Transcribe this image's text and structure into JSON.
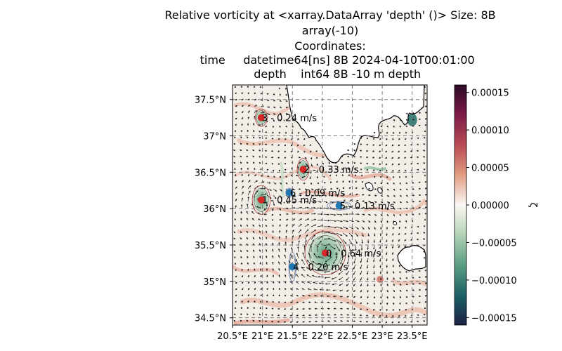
{
  "chart_data": {
    "type": "map",
    "title_lines": [
      "Relative vorticity at <xarray.DataArray 'depth' ()> Size: 8B",
      "array(-10)",
      "Coordinates:",
      "    time     datetime64[ns] 8B 2024-04-10T00:01:00",
      "    depth    int64 8B -10 m depth"
    ],
    "x_ticks": [
      {
        "value": 20.5,
        "label": "20.5°E"
      },
      {
        "value": 21.0,
        "label": "21°E"
      },
      {
        "value": 21.5,
        "label": "21.5°E"
      },
      {
        "value": 22.0,
        "label": "22°E"
      },
      {
        "value": 22.5,
        "label": "22.5°E"
      },
      {
        "value": 23.0,
        "label": "23°E"
      },
      {
        "value": 23.5,
        "label": "23.5°E"
      }
    ],
    "y_ticks": [
      {
        "value": 37.5,
        "label": "37.5°N"
      },
      {
        "value": 37.0,
        "label": "37°N"
      },
      {
        "value": 36.5,
        "label": "36.5°N"
      },
      {
        "value": 36.0,
        "label": "36°N"
      },
      {
        "value": 35.5,
        "label": "35.5°N"
      },
      {
        "value": 35.0,
        "label": "35°N"
      },
      {
        "value": 34.5,
        "label": "34.5°N"
      }
    ],
    "xlim": [
      20.5,
      23.75
    ],
    "ylim": [
      34.4,
      37.7
    ],
    "grid": true,
    "colorbar": {
      "label": "ζ",
      "range": [
        -0.00016,
        0.00016
      ],
      "ticks": [
        "0.00015",
        "0.00010",
        "0.00005",
        "0.00000",
        "−0.00005",
        "−0.00010",
        "−0.00015"
      ],
      "tick_values": [
        0.00015,
        0.0001,
        5e-05,
        0,
        -5e-05,
        -0.0001,
        -0.00015
      ],
      "colors": [
        "#1a2145",
        "#136a6a",
        "#5aa07a",
        "#c5dcc5",
        "#fbf5f0",
        "#e8b8a0",
        "#d4705a",
        "#9a2150",
        "#3c0a30"
      ]
    },
    "eddies": [
      {
        "id": "0",
        "label": "0 - 0.64 m/s",
        "lon": 22.05,
        "lat": 35.39,
        "type": "cyclonic",
        "radius_lon": 0.34,
        "radius_lat": 0.3
      },
      {
        "id": "1",
        "label": "1 - 0.45 m/s",
        "lon": 20.98,
        "lat": 36.12,
        "type": "cyclonic",
        "radius_lon": 0.15,
        "radius_lat": 0.2
      },
      {
        "id": "2",
        "label": "2 - 0.33 m/s",
        "lon": 21.68,
        "lat": 36.54,
        "type": "cyclonic",
        "radius_lon": 0.1,
        "radius_lat": 0.15
      },
      {
        "id": "3",
        "label": "3 - 0.24 m/s",
        "lon": 20.98,
        "lat": 37.25,
        "type": "cyclonic",
        "radius_lon": 0.1,
        "radius_lat": 0.12
      },
      {
        "id": "4",
        "label": "4 - 0.20 m/s",
        "lon": 21.5,
        "lat": 35.2,
        "type": "anticyclonic",
        "radius_lon": 0.06,
        "radius_lat": 0.2
      },
      {
        "id": "5",
        "label": "5 - 0.13 m/s",
        "lon": 22.28,
        "lat": 36.04,
        "type": "anticyclonic",
        "radius_lon": 0.2,
        "radius_lat": 0.06
      },
      {
        "id": "6",
        "label": "6 - 0.09 m/s",
        "lon": 21.45,
        "lat": 36.22,
        "type": "anticyclonic",
        "radius_lon": 0.06,
        "radius_lat": 0.06
      }
    ],
    "colors": {
      "cyclonic_marker": "#d62728",
      "anticyclonic_marker": "#1f77b4",
      "land": "#ffffff",
      "coastline": "#000000",
      "grid": "#777777"
    }
  }
}
